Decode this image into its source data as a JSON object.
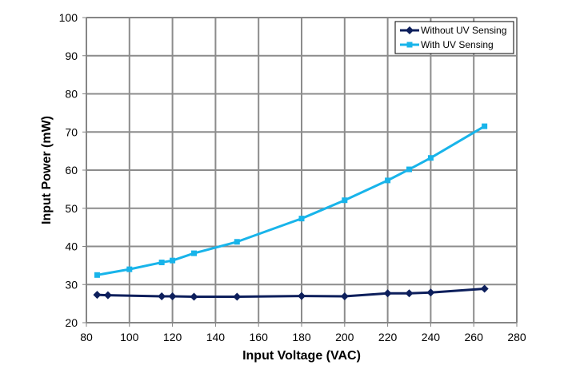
{
  "chart_data": {
    "type": "line",
    "xlabel": "Input Voltage (VAC)",
    "ylabel": "Input Power (mW)",
    "xlim": [
      80,
      280
    ],
    "ylim": [
      20,
      100
    ],
    "xticks": [
      80,
      100,
      120,
      140,
      160,
      180,
      200,
      220,
      240,
      260,
      280
    ],
    "yticks": [
      20,
      30,
      40,
      50,
      60,
      70,
      80,
      90,
      100
    ],
    "grid": true,
    "legend_position": "top-right",
    "series": [
      {
        "name": "Without UV Sensing",
        "color": "#0d1f5c",
        "marker": "diamond",
        "x": [
          85,
          90,
          115,
          120,
          130,
          150,
          180,
          200,
          220,
          230,
          240,
          265
        ],
        "y": [
          27.3,
          27.2,
          26.9,
          26.9,
          26.8,
          26.8,
          27.0,
          26.9,
          27.7,
          27.7,
          27.9,
          28.9
        ]
      },
      {
        "name": "With UV Sensing",
        "color": "#18b4ea",
        "marker": "square",
        "x": [
          85,
          100,
          115,
          120,
          130,
          150,
          180,
          200,
          220,
          230,
          240,
          265
        ],
        "y": [
          32.5,
          34.0,
          35.8,
          36.3,
          38.2,
          41.2,
          47.3,
          52.1,
          57.3,
          60.2,
          63.2,
          71.5
        ]
      }
    ]
  }
}
